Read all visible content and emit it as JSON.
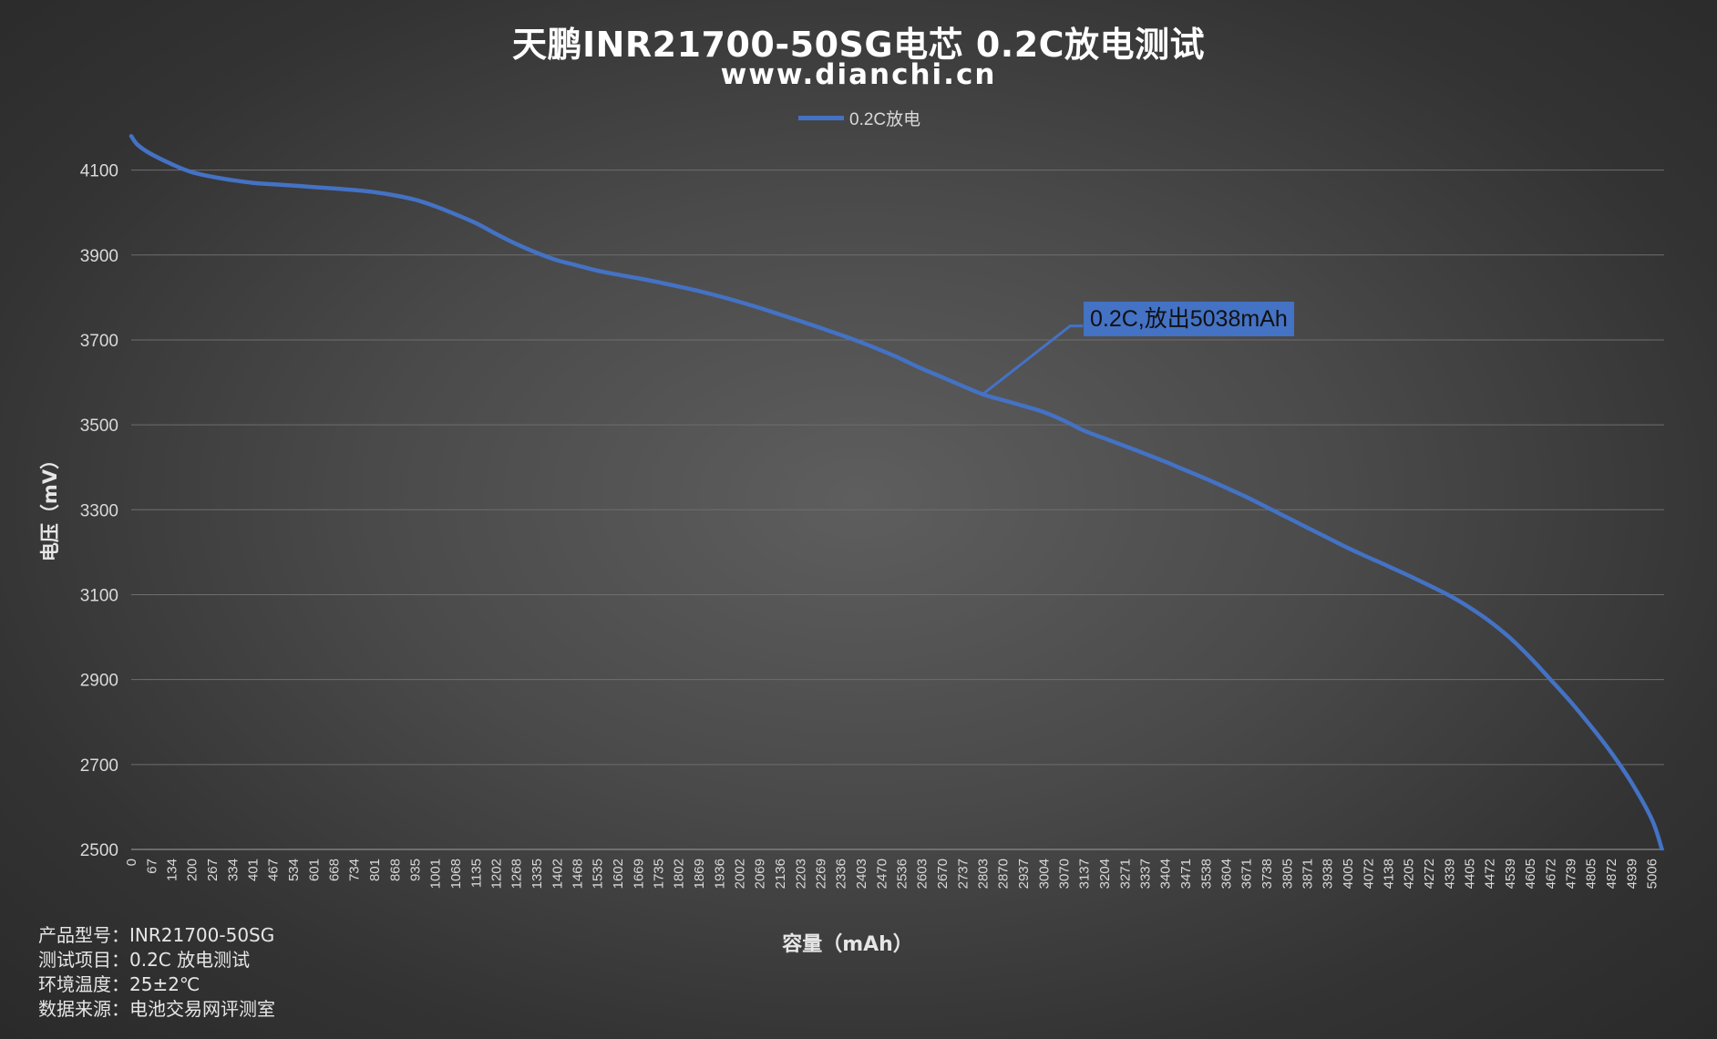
{
  "title": "天鹏INR21700-50SG电芯 0.2C放电测试",
  "subtitle": "www.dianchi.cn",
  "info": [
    {
      "label": "产品型号：",
      "value": "INR21700-50SG"
    },
    {
      "label": "测试项目：",
      "value": "0.2C 放电测试"
    },
    {
      "label": "环境温度：",
      "value": "25±2℃"
    },
    {
      "label": "数据来源：",
      "value": "电池交易网评测室"
    }
  ],
  "colors": {
    "series": "#4472C4",
    "grid": "#6e6e6e",
    "text": "#d9d9d9"
  },
  "chart_data": {
    "type": "line",
    "title": "天鹏INR21700-50SG电芯 0.2C放电测试",
    "subtitle": "www.dianchi.cn",
    "xlabel": "容量（mAh）",
    "ylabel": "电压（mV）",
    "ylim": [
      2500,
      4200
    ],
    "yticks": [
      2500,
      2700,
      2900,
      3100,
      3300,
      3500,
      3700,
      3900,
      4100
    ],
    "grid": "horizontal",
    "legend_position": "top-center",
    "x_tick_labels": [
      "0",
      "67",
      "134",
      "200",
      "267",
      "334",
      "401",
      "467",
      "534",
      "601",
      "668",
      "734",
      "801",
      "868",
      "935",
      "1001",
      "1068",
      "1135",
      "1202",
      "1268",
      "1335",
      "1402",
      "1468",
      "1535",
      "1602",
      "1669",
      "1735",
      "1802",
      "1869",
      "1936",
      "2002",
      "2069",
      "2136",
      "2203",
      "2269",
      "2336",
      "2403",
      "2470",
      "2536",
      "2603",
      "2670",
      "2737",
      "2803",
      "2870",
      "2937",
      "3004",
      "3070",
      "3137",
      "3204",
      "3271",
      "3337",
      "3404",
      "3471",
      "3538",
      "3604",
      "3671",
      "3738",
      "3805",
      "3871",
      "3938",
      "4005",
      "4072",
      "4138",
      "4205",
      "4272",
      "4339",
      "4405",
      "4472",
      "4539",
      "4605",
      "4672",
      "4739",
      "4805",
      "4872",
      "4939",
      "5006"
    ],
    "xlim": [
      0,
      5038
    ],
    "series": [
      {
        "name": "0.2C放电",
        "x": [
          0,
          20,
          60,
          130,
          200,
          300,
          400,
          500,
          600,
          700,
          800,
          870,
          935,
          1000,
          1070,
          1135,
          1200,
          1270,
          1335,
          1400,
          1470,
          1535,
          1600,
          1670,
          1735,
          1800,
          1870,
          1935,
          2000,
          2070,
          2135,
          2200,
          2270,
          2335,
          2400,
          2470,
          2535,
          2600,
          2670,
          2735,
          2803,
          2870,
          2935,
          3004,
          3070,
          3137,
          3204,
          3271,
          3337,
          3404,
          3471,
          3538,
          3604,
          3671,
          3738,
          3805,
          3871,
          3938,
          4005,
          4072,
          4138,
          4205,
          4272,
          4339,
          4405,
          4472,
          4539,
          4605,
          4672,
          4739,
          4805,
          4872,
          4939,
          5006,
          5038
        ],
        "values": [
          4180,
          4160,
          4140,
          4115,
          4095,
          4080,
          4070,
          4065,
          4060,
          4055,
          4048,
          4040,
          4030,
          4015,
          3995,
          3975,
          3950,
          3925,
          3905,
          3888,
          3875,
          3863,
          3854,
          3845,
          3836,
          3826,
          3815,
          3803,
          3790,
          3775,
          3760,
          3745,
          3728,
          3712,
          3695,
          3675,
          3655,
          3633,
          3612,
          3592,
          3572,
          3558,
          3545,
          3530,
          3510,
          3486,
          3468,
          3450,
          3432,
          3413,
          3393,
          3373,
          3352,
          3330,
          3306,
          3282,
          3258,
          3234,
          3210,
          3188,
          3167,
          3145,
          3122,
          3098,
          3070,
          3037,
          2998,
          2952,
          2900,
          2847,
          2790,
          2728,
          2657,
          2570,
          2502
        ]
      }
    ],
    "annotation": {
      "text": "0.2C,放出5038mAh",
      "x": 2803,
      "y": 3572
    }
  }
}
